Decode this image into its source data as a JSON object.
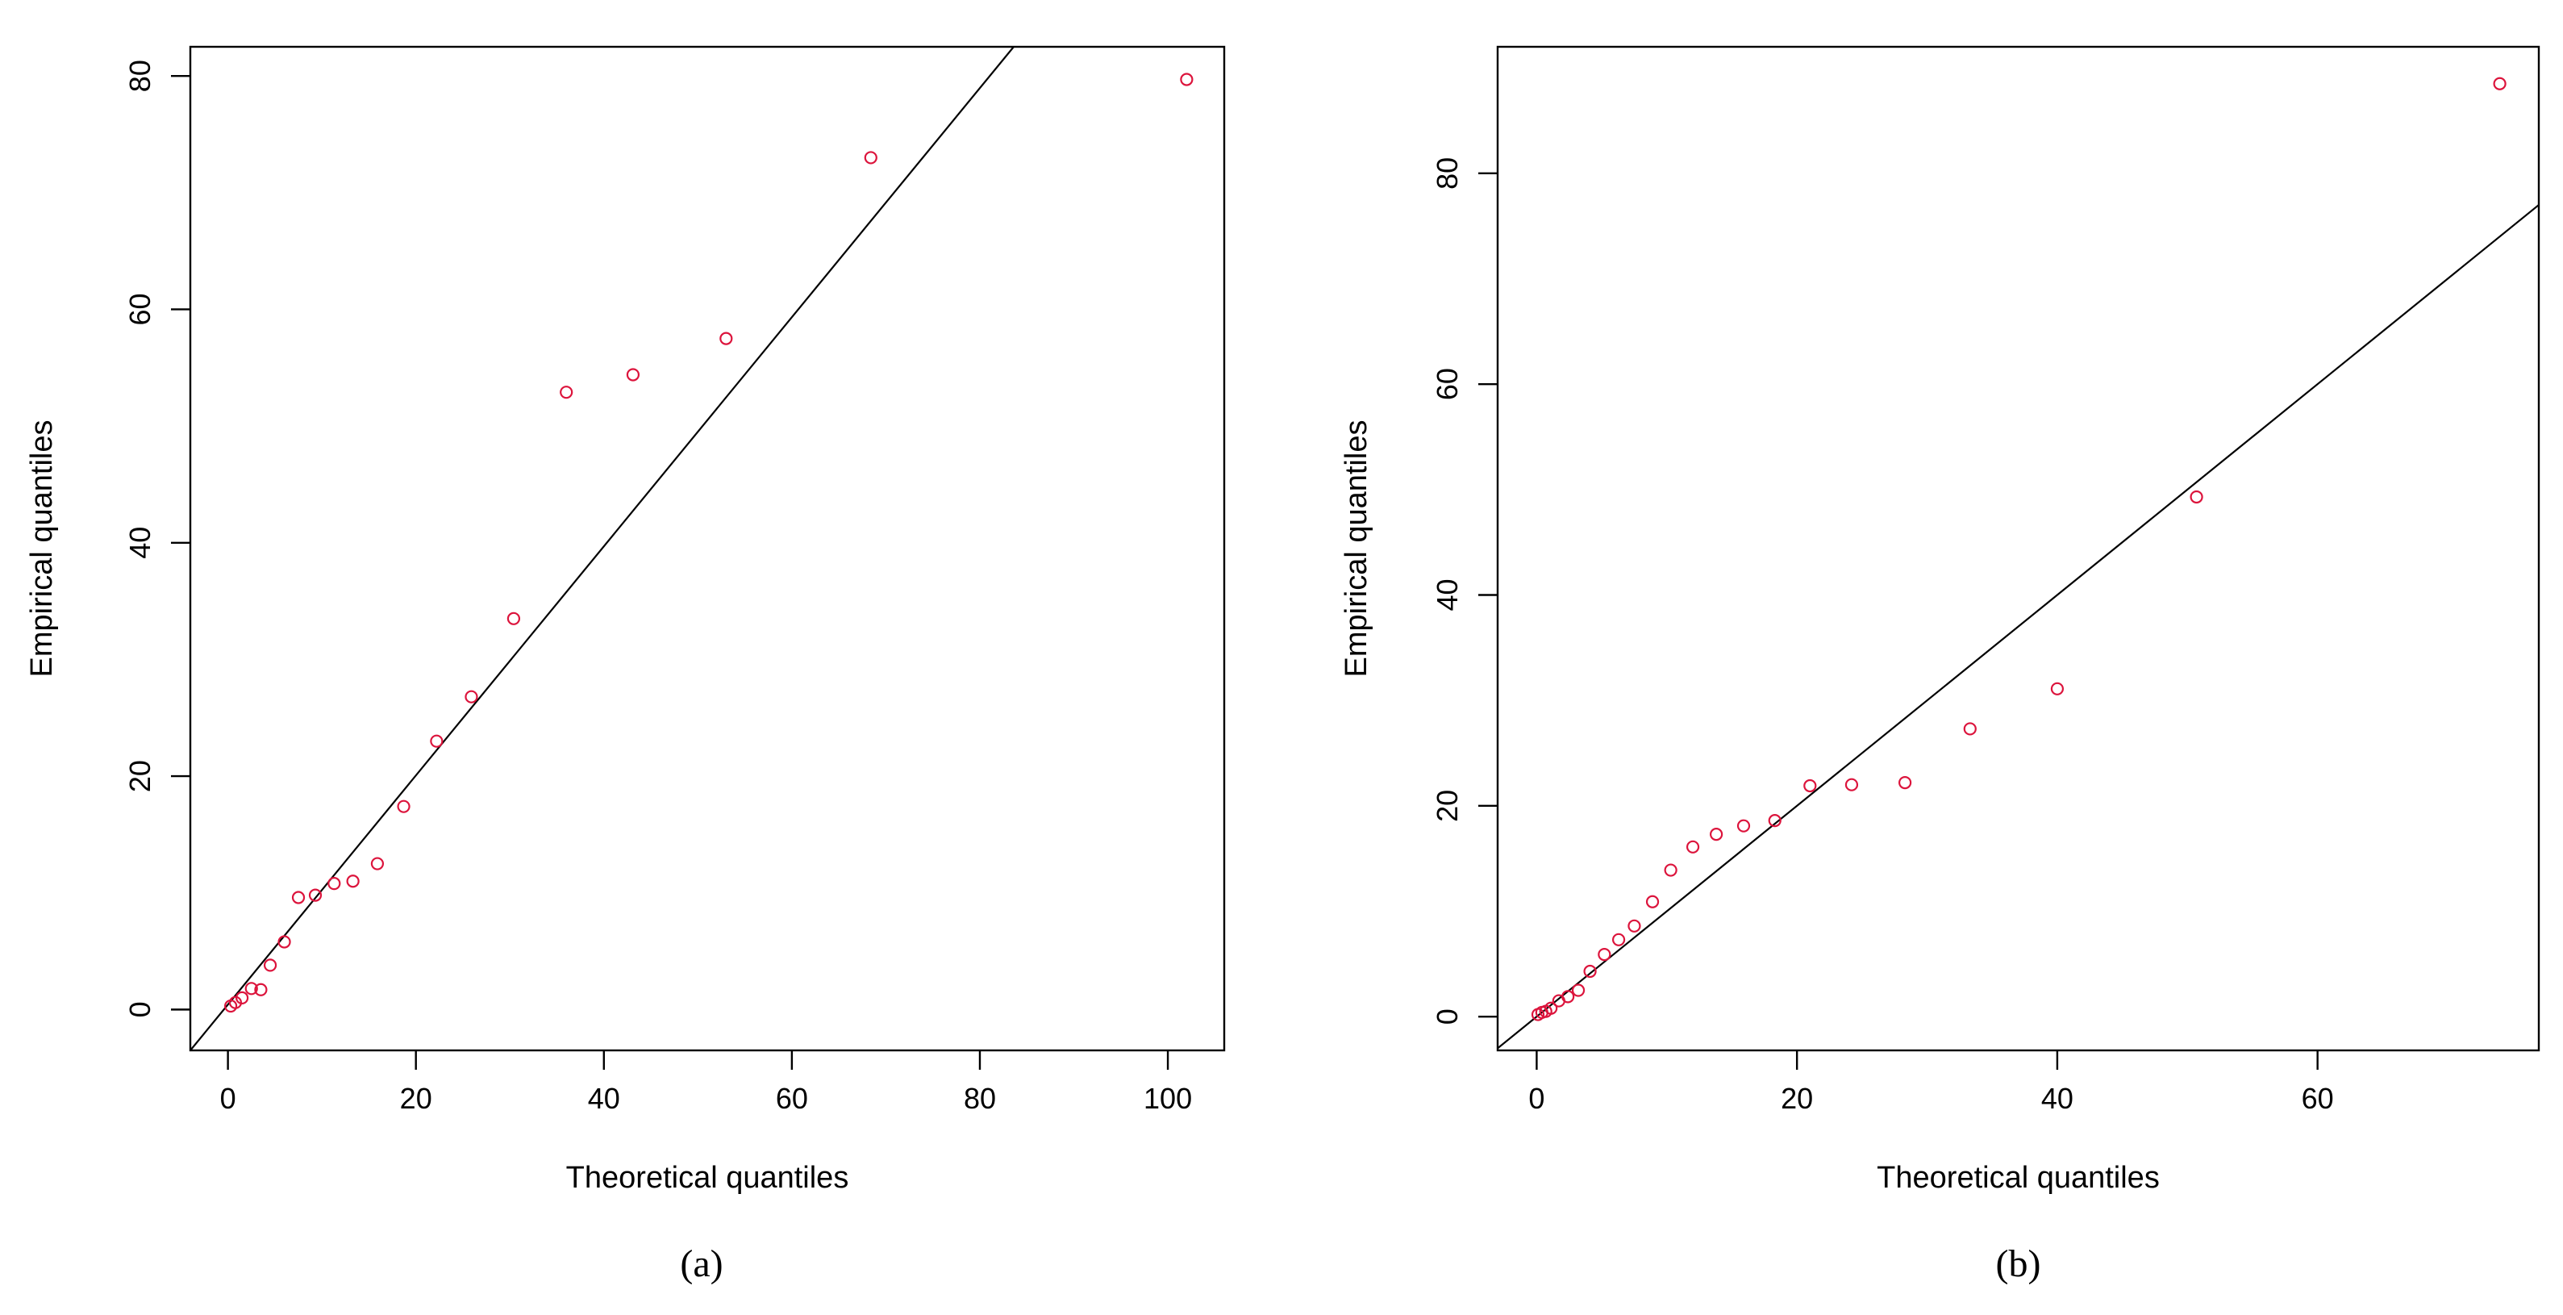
{
  "chart_data": [
    {
      "type": "scatter",
      "caption": "(a)",
      "xlabel": "Theoretical quantiles",
      "ylabel": "Empirical quantiles",
      "xlim": [
        -4,
        106
      ],
      "ylim": [
        -3.5,
        82.5
      ],
      "xticks": [
        0,
        20,
        40,
        60,
        80,
        100
      ],
      "yticks": [
        0,
        20,
        40,
        60,
        80
      ],
      "point_color": "#dc143c",
      "grid": false,
      "legend": "none",
      "reference_line": {
        "x1": -4,
        "y1": -3.5,
        "x2": 83.6,
        "y2": 82.5
      },
      "points": [
        {
          "x": 0.3,
          "y": 0.3
        },
        {
          "x": 0.8,
          "y": 0.6
        },
        {
          "x": 1.5,
          "y": 1.0
        },
        {
          "x": 2.5,
          "y": 1.8
        },
        {
          "x": 3.5,
          "y": 1.7
        },
        {
          "x": 4.5,
          "y": 3.8
        },
        {
          "x": 6.0,
          "y": 5.8
        },
        {
          "x": 7.5,
          "y": 9.6
        },
        {
          "x": 9.3,
          "y": 9.8
        },
        {
          "x": 11.3,
          "y": 10.8
        },
        {
          "x": 13.3,
          "y": 11.0
        },
        {
          "x": 15.9,
          "y": 12.5
        },
        {
          "x": 18.7,
          "y": 17.4
        },
        {
          "x": 22.2,
          "y": 23.0
        },
        {
          "x": 25.9,
          "y": 26.8
        },
        {
          "x": 30.4,
          "y": 33.5
        },
        {
          "x": 36.0,
          "y": 52.9
        },
        {
          "x": 43.1,
          "y": 54.4
        },
        {
          "x": 53.0,
          "y": 57.5
        },
        {
          "x": 68.4,
          "y": 73.0
        },
        {
          "x": 102.0,
          "y": 79.7
        }
      ]
    },
    {
      "type": "scatter",
      "caption": "(b)",
      "xlabel": "Theoretical quantiles",
      "ylabel": "Empirical quantiles",
      "xlim": [
        -3,
        77
      ],
      "ylim": [
        -3.2,
        92
      ],
      "xticks": [
        0,
        20,
        40,
        60
      ],
      "yticks": [
        0,
        20,
        40,
        60,
        80
      ],
      "point_color": "#dc143c",
      "grid": false,
      "legend": "none",
      "reference_line": {
        "x1": -3,
        "y1": -3.0,
        "x2": 77,
        "y2": 77.0
      },
      "points": [
        {
          "x": 0.1,
          "y": 0.2
        },
        {
          "x": 0.4,
          "y": 0.4
        },
        {
          "x": 0.7,
          "y": 0.5
        },
        {
          "x": 1.1,
          "y": 0.8
        },
        {
          "x": 1.7,
          "y": 1.5
        },
        {
          "x": 2.4,
          "y": 1.9
        },
        {
          "x": 3.2,
          "y": 2.5
        },
        {
          "x": 4.1,
          "y": 4.3
        },
        {
          "x": 5.2,
          "y": 5.9
        },
        {
          "x": 6.3,
          "y": 7.3
        },
        {
          "x": 7.5,
          "y": 8.6
        },
        {
          "x": 8.9,
          "y": 10.9
        },
        {
          "x": 10.3,
          "y": 13.9
        },
        {
          "x": 12.0,
          "y": 16.1
        },
        {
          "x": 13.8,
          "y": 17.3
        },
        {
          "x": 15.9,
          "y": 18.1
        },
        {
          "x": 18.3,
          "y": 18.6
        },
        {
          "x": 21.0,
          "y": 21.9
        },
        {
          "x": 24.2,
          "y": 22.0
        },
        {
          "x": 28.3,
          "y": 22.2
        },
        {
          "x": 33.3,
          "y": 27.3
        },
        {
          "x": 40.0,
          "y": 31.1
        },
        {
          "x": 50.7,
          "y": 49.3
        },
        {
          "x": 74.0,
          "y": 88.5
        }
      ]
    }
  ]
}
